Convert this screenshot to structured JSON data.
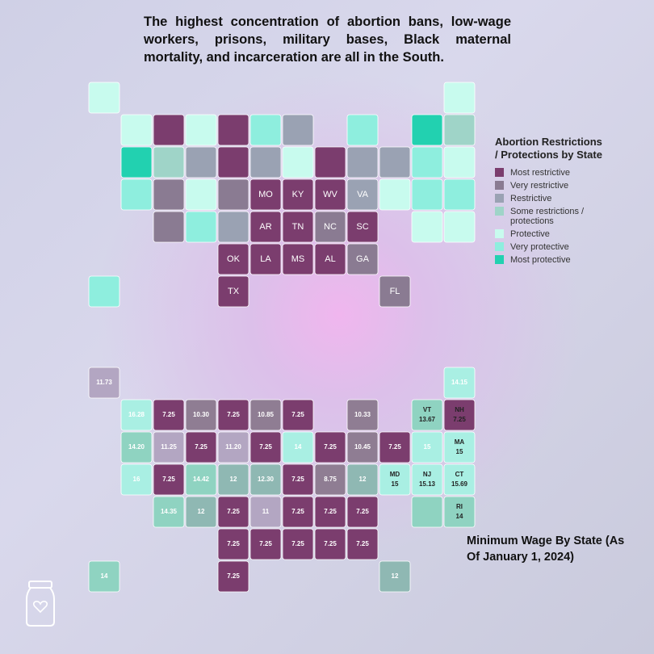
{
  "header": {
    "title": "The highest concentration of abortion bans, low-wage workers, prisons, military bases, Black maternal mortality, and incarceration are all in the South."
  },
  "top_map": {
    "legend": {
      "title": "Abortion Restrictions / Protections by State",
      "items": [
        {
          "label": "Most restrictive",
          "color": "#7b3d6e"
        },
        {
          "label": "Very restrictive",
          "color": "#8a7b92"
        },
        {
          "label": "Restrictive",
          "color": "#9aa2b3"
        },
        {
          "label": "Some restrictions / protections",
          "color": "#9fd4c8"
        },
        {
          "label": "Protective",
          "color": "#c8fbee"
        },
        {
          "label": "Very protective",
          "color": "#8eeede"
        },
        {
          "label": "Most protective",
          "color": "#22d1b0"
        }
      ]
    },
    "states": [
      {
        "category": 4
      },
      {
        "category": 6
      },
      {
        "category": 5
      },
      {
        "category": 3
      },
      {
        "category": 0
      },
      {
        "category": 4
      },
      {
        "category": 2
      },
      {
        "category": 1
      },
      {
        "category": 1
      },
      {
        "category": 4
      },
      {
        "category": 5
      },
      {
        "category": 0
      },
      {
        "category": 0
      },
      {
        "category": 1
      },
      {
        "category": 2
      },
      {
        "category": 0,
        "label": "OK"
      },
      {
        "category": 0,
        "label": "TX"
      },
      {
        "category": 5
      },
      {
        "category": 2
      },
      {
        "category": 0,
        "label": "MO"
      },
      {
        "category": 0,
        "label": "AR"
      },
      {
        "category": 0,
        "label": "LA"
      },
      {
        "category": 2
      },
      {
        "category": 4
      },
      {
        "category": 5
      },
      {
        "category": 0
      },
      {
        "category": 0,
        "label": "KY"
      },
      {
        "category": 0,
        "label": "TN"
      },
      {
        "category": 0,
        "label": "MS"
      },
      {
        "category": 0,
        "label": "AL"
      },
      {
        "category": 2
      },
      {
        "category": 0,
        "label": "WV"
      },
      {
        "category": 2,
        "label": "VA"
      },
      {
        "category": 1,
        "label": "NC"
      },
      {
        "category": 0,
        "label": "SC"
      },
      {
        "category": 1,
        "label": "GA"
      },
      {
        "category": 1,
        "label": "FL"
      },
      {
        "category": 2
      },
      {
        "category": 5
      },
      {
        "category": 6
      },
      {
        "category": 3
      },
      {
        "category": 4
      },
      {
        "category": 4
      },
      {
        "category": 4
      },
      {
        "category": 5
      },
      {
        "category": 5
      },
      {
        "category": 4
      },
      {
        "category": 4
      },
      {
        "category": 4
      },
      {
        "category": 5
      }
    ]
  },
  "bottom_map": {
    "caption": "Minimum Wage By State (As Of January 1, 2024)",
    "states": [
      {
        "color": "#a9efe3",
        "wage": "16.28"
      },
      {
        "color": "#8fd3c1",
        "wage": "14.20"
      },
      {
        "color": "#a9efe3",
        "wage": "16"
      },
      {
        "color": "#b3a6c2",
        "wage": "11.25"
      },
      {
        "color": "#7b3d6e",
        "wage": "7.25"
      },
      {
        "color": "#8f7d93",
        "wage": "10.30"
      },
      {
        "color": "#7b3d6e",
        "wage": "7.25"
      },
      {
        "color": "#7b3d6e",
        "wage": "7.25"
      },
      {
        "color": "#8fd3c1",
        "wage": "14.35"
      },
      {
        "color": "#8fd3c1",
        "wage": "14.42"
      },
      {
        "color": "#8fb8b3",
        "wage": "12"
      },
      {
        "color": "#7b3d6e",
        "wage": "7.25"
      },
      {
        "color": "#b3a6c2",
        "wage": "11.20"
      },
      {
        "color": "#8fb8b3",
        "wage": "12"
      },
      {
        "color": "#7b3d6e",
        "wage": "7.25"
      },
      {
        "color": "#7b3d6e",
        "wage": "7.25"
      },
      {
        "color": "#7b3d6e",
        "wage": "7.25"
      },
      {
        "color": "#8f7d93",
        "wage": "10.85"
      },
      {
        "color": "#7b3d6e",
        "wage": "7.25"
      },
      {
        "color": "#8fb8b3",
        "wage": "12.30"
      },
      {
        "color": "#b3a6c2",
        "wage": "11"
      },
      {
        "color": "#7b3d6e",
        "wage": "7.25"
      },
      {
        "color": "#7b3d6e",
        "wage": "7.25"
      },
      {
        "color": "#a9efe3",
        "wage": "14"
      },
      {
        "color": "#8f7d93",
        "wage": "10.33"
      },
      {
        "color": "#7b3d6e",
        "wage": "7.25"
      },
      {
        "color": "#7b3d6e",
        "wage": "7.25"
      },
      {
        "color": "#7b3d6e",
        "wage": "7.25"
      },
      {
        "color": "#7b3d6e",
        "wage": "7.25"
      },
      {
        "color": "#7b3d6e",
        "wage": "7.25"
      },
      {
        "color": "#8f7d93",
        "wage": "10.45"
      },
      {
        "color": "#8f7d93",
        "wage": "8.75"
      },
      {
        "color": "#8fb8b3",
        "wage": "12"
      },
      {
        "color": "#7b3d6e",
        "wage": "7.25"
      },
      {
        "color": "#7b3d6e",
        "wage": "7.25"
      },
      {
        "color": "#7b3d6e",
        "wage": "7.25"
      },
      {
        "color": "#8fb8b3",
        "wage": "12"
      },
      {
        "color": "#7b3d6e",
        "wage": "7.25"
      },
      {
        "color": "#a9efe3",
        "wage": "15"
      },
      {
        "color": "#8fd3c1",
        "abbr": "VT",
        "wage": "13.67"
      },
      {
        "color": "#7b3d6e",
        "abbr": "NH",
        "wage": "7.25"
      },
      {
        "color": "#a9efe3",
        "wage": "14.15"
      },
      {
        "color": "#a9efe3",
        "abbr": "MA",
        "wage": "15"
      },
      {
        "color": "#8fd3c1",
        "abbr": "RI",
        "wage": "14"
      },
      {
        "color": "#a9efe3",
        "abbr": "CT",
        "wage": "15.69"
      },
      {
        "color": "#a9efe3",
        "abbr": "NJ",
        "wage": "15.13"
      },
      {
        "color": "#8fd3c1"
      },
      {
        "color": "#a9efe3",
        "abbr": "MD",
        "wage": "15"
      },
      {
        "color": "#b3a6c2",
        "wage": "11.73"
      },
      {
        "color": "#8fd3c1",
        "wage": "14"
      }
    ]
  }
}
